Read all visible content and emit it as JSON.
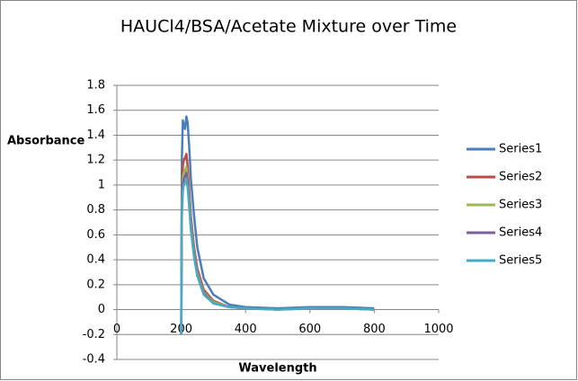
{
  "chart_data": {
    "type": "line",
    "title": "HAUCl4/BSA/Acetate Mixture over Time",
    "x_label": "Wavelength",
    "y_label": "Absorbance",
    "x": [
      200,
      202,
      205,
      208,
      212,
      216,
      220,
      225,
      230,
      240,
      250,
      270,
      300,
      350,
      400,
      500,
      600,
      700,
      800
    ],
    "series": [
      {
        "name": "Series1",
        "color": "#4a7ebb",
        "values": [
          -0.2,
          1.2,
          1.52,
          1.48,
          1.45,
          1.55,
          1.5,
          1.3,
          1.05,
          0.75,
          0.5,
          0.25,
          0.12,
          0.04,
          0.02,
          0.01,
          0.02,
          0.02,
          0.01
        ]
      },
      {
        "name": "Series2",
        "color": "#be4b48",
        "values": [
          -0.2,
          0.9,
          1.15,
          1.2,
          1.22,
          1.25,
          1.15,
          0.95,
          0.75,
          0.5,
          0.33,
          0.16,
          0.07,
          0.02,
          0.01,
          0,
          0.01,
          0.01,
          0
        ]
      },
      {
        "name": "Series3",
        "color": "#98b954",
        "values": [
          -0.2,
          0.85,
          1.05,
          1.1,
          1.12,
          1.15,
          1.06,
          0.88,
          0.7,
          0.46,
          0.3,
          0.14,
          0.06,
          0.02,
          0.01,
          0,
          0.01,
          0.01,
          0
        ]
      },
      {
        "name": "Series4",
        "color": "#7d5fa0",
        "values": [
          -0.2,
          0.8,
          1.0,
          1.05,
          1.07,
          1.1,
          1.02,
          0.85,
          0.67,
          0.44,
          0.28,
          0.13,
          0.05,
          0.02,
          0.01,
          0,
          0.01,
          0.01,
          0
        ]
      },
      {
        "name": "Series5",
        "color": "#46aac5",
        "values": [
          -0.2,
          0.75,
          0.95,
          1.0,
          1.02,
          1.05,
          0.98,
          0.82,
          0.64,
          0.42,
          0.27,
          0.12,
          0.05,
          0.02,
          0.01,
          0,
          0.01,
          0.01,
          0
        ]
      }
    ],
    "xlim": [
      0,
      1000
    ],
    "xticks": [
      0,
      200,
      400,
      600,
      800,
      1000
    ],
    "ylim": [
      -0.4,
      1.8
    ],
    "yticks": [
      -0.4,
      -0.2,
      0,
      0.2,
      0.4,
      0.6,
      0.8,
      1,
      1.2,
      1.4,
      1.6,
      1.8
    ],
    "grid": true,
    "legend": "right"
  }
}
